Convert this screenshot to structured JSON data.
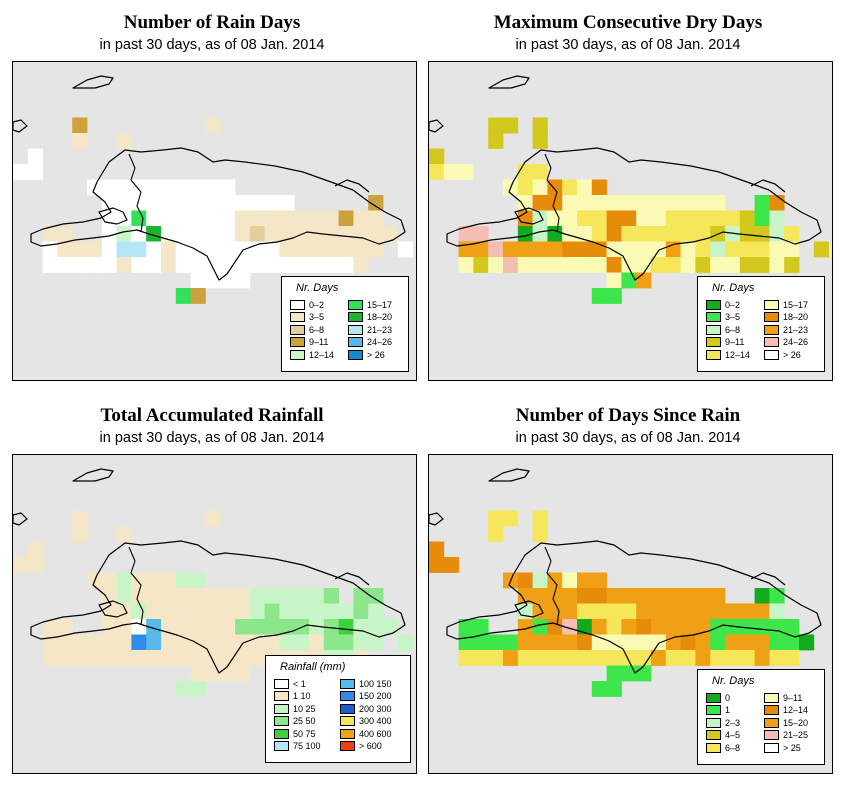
{
  "panels": [
    {
      "title": "Number of Rain Days",
      "subtitle": "in past 30 days, as of  08 Jan. 2014",
      "legend_title": "Nr. Days",
      "legend": [
        {
          "label": "0–2",
          "color": "#ffffff"
        },
        {
          "label": "3–5",
          "color": "#f5e6c8"
        },
        {
          "label": "6–8",
          "color": "#e2cfa0"
        },
        {
          "label": "9–11",
          "color": "#cba23c"
        },
        {
          "label": "12–14",
          "color": "#ccf5cc"
        },
        {
          "label": "15–17",
          "color": "#33e05a"
        },
        {
          "label": "18–20",
          "color": "#1eb432"
        },
        {
          "label": "21–23",
          "color": "#b4e6f5"
        },
        {
          "label": "24–26",
          "color": "#5ab9ec"
        },
        {
          "label": "> 26",
          "color": "#1489d2"
        }
      ]
    },
    {
      "title": "Maximum Consecutive Dry Days",
      "subtitle": "in past 30 days, as of  08 Jan. 2014",
      "legend_title": "Nr. Days",
      "legend": [
        {
          "label": "0–2",
          "color": "#14aa1e"
        },
        {
          "label": "3–5",
          "color": "#3ce64b"
        },
        {
          "label": "6–8",
          "color": "#c8f5c8"
        },
        {
          "label": "9–11",
          "color": "#d2c81e"
        },
        {
          "label": "12–14",
          "color": "#f5e65a"
        },
        {
          "label": "15–17",
          "color": "#fafab4"
        },
        {
          "label": "18–20",
          "color": "#e68c0a"
        },
        {
          "label": "21–23",
          "color": "#f0a014"
        },
        {
          "label": "24–26",
          "color": "#f5beb4"
        },
        {
          "label": "> 26",
          "color": "#ffffff"
        }
      ]
    },
    {
      "title": "Total Accumulated Rainfall",
      "subtitle": "in past 30 days, as of  08 Jan. 2014",
      "legend_title": "Rainfall (mm)",
      "legend": [
        {
          "label": "< 1",
          "color": "#ffffff"
        },
        {
          "label": "1    10",
          "color": "#f5e6c8"
        },
        {
          "label": "10    25",
          "color": "#c8f5c8"
        },
        {
          "label": "25    50",
          "color": "#8ce68c"
        },
        {
          "label": "50    75",
          "color": "#3cd23c"
        },
        {
          "label": "75   100",
          "color": "#b4e6f5"
        },
        {
          "label": "100   150",
          "color": "#5ab9ec"
        },
        {
          "label": "150   200",
          "color": "#2d8ce6"
        },
        {
          "label": "200   300",
          "color": "#1e5ad2"
        },
        {
          "label": "300   400",
          "color": "#f5e65a"
        },
        {
          "label": "400   600",
          "color": "#f0a014"
        },
        {
          "label": "> 600",
          "color": "#f03c14"
        }
      ]
    },
    {
      "title": "Number of Days Since Rain",
      "subtitle": "in past 30 days, as of  08 Jan. 2014",
      "legend_title": "Nr. Days",
      "legend": [
        {
          "label": "0",
          "color": "#14aa1e"
        },
        {
          "label": "1",
          "color": "#3ce64b"
        },
        {
          "label": "2–3",
          "color": "#c8f5c8"
        },
        {
          "label": "4–5",
          "color": "#d2c81e"
        },
        {
          "label": "6–8",
          "color": "#f5e65a"
        },
        {
          "label": "9–11",
          "color": "#fafab4"
        },
        {
          "label": "12–14",
          "color": "#e68c0a"
        },
        {
          "label": "15–20",
          "color": "#f0a014"
        },
        {
          "label": "21–25",
          "color": "#f5beb4"
        },
        {
          "label": "> 25",
          "color": "#ffffff"
        }
      ]
    }
  ],
  "grids": [
    [
      "..........................",
      "....d........b.............",
      "....b..b...................",
      ".a.........................",
      "aa.........................",
      ".....aaaaaaaaaa............",
      "......aaaaaaaaaaaaa.....d...",
      "......aafaaaaaabbbbbbbdbb..",
      "..bb..aeagaaaaabcbbbbbbbbb.",
      "..abbbahhabaaaaaaabbbbbbb.a",
      "..aaaaabaabaaaaaaaaaaaab...",
      "............aaaa...........",
      "...........fd.............."
    ],
    [
      "...........................",
      "....dd.d...................",
      "....d..d...................",
      "d..........................",
      "eff...ee...................",
      ".....fefgefg...............",
      "......fggfffffffffff..bg....",
      "......gcffeeggffeeeeedbc...",
      "..ii..acaffegeeeeeedcddce..",
      "..hhihhhhgggffffhfeceeeff.d",
      "..fdfiffffffgffeefdffddfd..",
      "............fbh............",
      "...........bb.............."
    ],
    [
      "...........................",
      "....b........b.............",
      "....b..b...................",
      ".b.........................",
      "bb.........................",
      ".....bbcbbbcc..............",
      "......bcbbbbbbbbcccccd.dd...",
      "......bbcbbbbbbbcdcccccdc..",
      "..bb..bbagbbbbbdddddcdeccc.",
      "..bbbbbbhgbbbbbbbbccbddcc.c",
      "..bbbbbbbbbbbbbbbbbbbccb...",
      "............bbbb...........",
      "...........cc.............."
    ],
    [
      "...........................",
      "....ee.e...................",
      "....e..e...................",
      "g..........................",
      "gg.........................",
      ".....hgchfhh...............",
      "......hhhhgghhhhhhhh..ab....",
      "......chhheeeehhhhhhhhhc...",
      "..bb..hbgiahehghhhhbbbbbb..",
      "..bbbbhhhhgfffffhghbhhhbba.",
      "..eeeheeeeeeeeeheeheeehee..",
      "............bbb............",
      "...........bb.............."
    ]
  ]
}
